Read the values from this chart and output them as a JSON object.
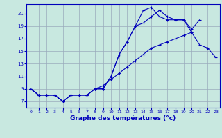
{
  "title": "Graphe des températures (°c)",
  "bg_color": "#c8e8e0",
  "grid_color": "#99aabb",
  "line_color": "#0000bb",
  "xlim": [
    -0.5,
    23.5
  ],
  "ylim": [
    6.0,
    22.5
  ],
  "xticks": [
    0,
    1,
    2,
    3,
    4,
    5,
    6,
    7,
    8,
    9,
    10,
    11,
    12,
    13,
    14,
    15,
    16,
    17,
    18,
    19,
    20,
    21,
    22,
    23
  ],
  "yticks": [
    7,
    9,
    11,
    13,
    15,
    17,
    19,
    21
  ],
  "s1_x": [
    0,
    1,
    2,
    3,
    4,
    5,
    6,
    7,
    8,
    9,
    10,
    11,
    12,
    13,
    14,
    15,
    16,
    17,
    18,
    19,
    20
  ],
  "s1_y": [
    9,
    8,
    8,
    8,
    7,
    8,
    8,
    8,
    9,
    9,
    11,
    14.5,
    16.5,
    19,
    21.5,
    22,
    20.5,
    20,
    20,
    20,
    18
  ],
  "s2_x": [
    0,
    1,
    2,
    3,
    4,
    5,
    6,
    7,
    8,
    9,
    10,
    11,
    12,
    13,
    14,
    15,
    16,
    17,
    18,
    19,
    20,
    21
  ],
  "s2_y": [
    9,
    8,
    8,
    8,
    7,
    8,
    8,
    8,
    9,
    9,
    11,
    14.5,
    16.5,
    19,
    19.5,
    20.5,
    21.5,
    20.5,
    20,
    20,
    18.5,
    20
  ],
  "s3_x": [
    0,
    1,
    2,
    3,
    4,
    5,
    6,
    7,
    8,
    9,
    10,
    11,
    12,
    13,
    14,
    15,
    16,
    17,
    18,
    19,
    20,
    21,
    22,
    23
  ],
  "s3_y": [
    9,
    8,
    8,
    8,
    7,
    8,
    8,
    8,
    9,
    9.5,
    10.5,
    11.5,
    12.5,
    13.5,
    14.5,
    15.5,
    16,
    16.5,
    17,
    17.5,
    18,
    16,
    15.5,
    14
  ]
}
